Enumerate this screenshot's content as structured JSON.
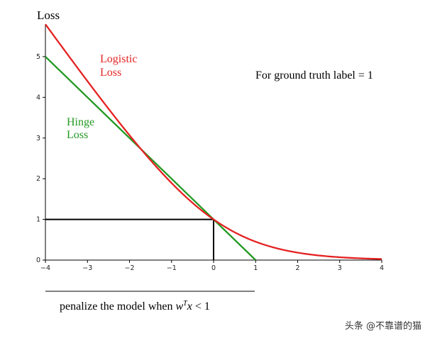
{
  "chart_data": {
    "type": "line",
    "xlim": [
      -4,
      4
    ],
    "ylim": [
      0,
      5.8
    ],
    "x_ticks": [
      "−4",
      "−3",
      "−2",
      "−1",
      "0",
      "1",
      "2",
      "3",
      "4"
    ],
    "y_ticks": [
      "0",
      "1",
      "2",
      "3",
      "4",
      "5"
    ],
    "ylabel": "Loss",
    "note": "For ground truth label = 1",
    "series": [
      {
        "name": "Logistic Loss",
        "color": "#e52222",
        "function": "log2(1+exp(-x))",
        "x": [
          -4,
          -3,
          -2,
          -1,
          0,
          1,
          2,
          3,
          4
        ],
        "y": [
          5.79,
          4.39,
          3.07,
          1.89,
          1.0,
          0.45,
          0.18,
          0.07,
          0.03
        ]
      },
      {
        "name": "Hinge Loss",
        "color": "#229922",
        "function": "max(0,1-x)",
        "x": [
          -4,
          1
        ],
        "y": [
          5,
          0
        ]
      }
    ],
    "reference": {
      "x": 0,
      "y": 1,
      "color": "#000000"
    },
    "annotation": {
      "text_prefix": "penalize the model when ",
      "math_w": "w",
      "math_T": "T",
      "math_x": "x",
      "math_rest": " < 1"
    }
  },
  "labels": {
    "logistic_line1": "Logistic",
    "logistic_line2": "Loss",
    "hinge_line1": "Hinge",
    "hinge_line2": "Loss"
  },
  "watermark": "头条 @不靠谱的猫"
}
